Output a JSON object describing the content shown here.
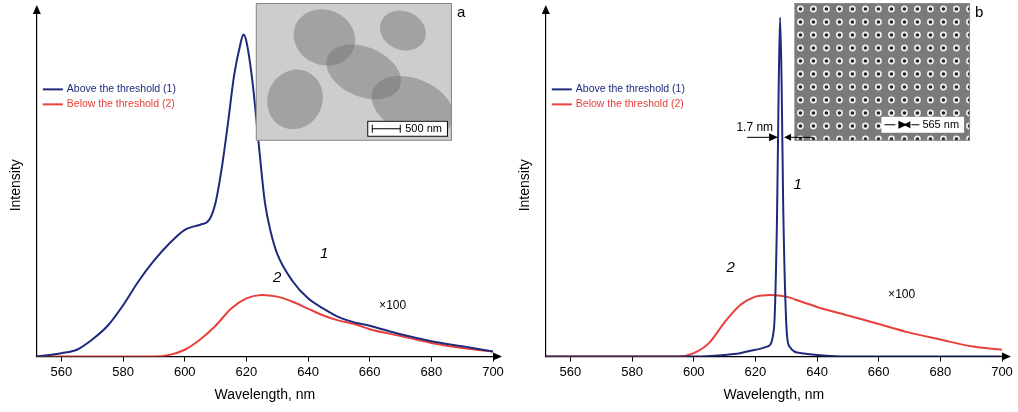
{
  "chart_data": [
    {
      "type": "line",
      "panel_label": "a",
      "x_label": "Wavelength, nm",
      "y_label": "Intensity",
      "xlim": [
        552,
        700
      ],
      "xticks": [
        560,
        580,
        600,
        620,
        640,
        660,
        680,
        700
      ],
      "ylim": [
        0,
        100
      ],
      "tick_labels": "x",
      "grid": false,
      "legend": "upper left",
      "series": [
        {
          "name": "Above the threshold (1)",
          "color": "#1f2a7c",
          "x": [
            552,
            560,
            565,
            570,
            575,
            580,
            585,
            590,
            595,
            600,
            603,
            605,
            608,
            610,
            612,
            614,
            616,
            618,
            619,
            620,
            622,
            624,
            626,
            628,
            630,
            635,
            640,
            645,
            650,
            655,
            660,
            670,
            680,
            690,
            700
          ],
          "values": [
            0,
            1,
            2,
            5,
            9,
            15,
            22,
            28,
            33,
            37,
            38,
            38.5,
            40,
            45,
            55,
            68,
            82,
            91,
            94,
            92,
            80,
            62,
            45,
            36,
            30,
            22,
            17,
            14,
            11.5,
            10,
            9,
            6.5,
            4.5,
            3,
            1.5
          ]
        },
        {
          "name": "Below the threshold (2)",
          "color": "#e8413c",
          "x": [
            552,
            590,
            595,
            600,
            605,
            610,
            615,
            620,
            625,
            630,
            635,
            640,
            645,
            650,
            655,
            660,
            670,
            680,
            690,
            700
          ],
          "values": [
            0,
            0,
            0.5,
            2,
            5,
            9,
            14,
            17,
            18,
            17.5,
            16,
            14,
            12,
            10.5,
            9.5,
            8,
            6,
            4,
            2.5,
            1.5
          ]
        }
      ],
      "annotations": [
        "1",
        "2",
        "×100"
      ],
      "inset": {
        "scale_bar": "500 nm"
      }
    },
    {
      "type": "line",
      "panel_label": "b",
      "x_label": "Wavelength, nm",
      "y_label": "Intensity",
      "xlim": [
        552,
        700
      ],
      "xticks": [
        560,
        580,
        600,
        620,
        640,
        660,
        680,
        700
      ],
      "ylim": [
        0,
        100
      ],
      "tick_labels": "x",
      "grid": false,
      "legend": "upper left",
      "series": [
        {
          "name": "Above the threshold (1)",
          "color": "#1f2a7c",
          "x": [
            552,
            600,
            610,
            615,
            620,
            624,
            626,
            627,
            627.5,
            628,
            628.5,
            629,
            630,
            631,
            635,
            640,
            650,
            700
          ],
          "values": [
            0,
            0,
            0.5,
            1,
            2,
            3,
            8,
            40,
            75,
            99,
            80,
            45,
            10,
            3,
            1,
            0.5,
            0,
            0
          ]
        },
        {
          "name": "Below the threshold (2)",
          "color": "#e8413c",
          "x": [
            552,
            595,
            600,
            605,
            610,
            615,
            620,
            625,
            630,
            635,
            640,
            650,
            660,
            670,
            680,
            690,
            700
          ],
          "values": [
            0,
            0,
            1,
            4,
            10,
            15,
            17.5,
            18,
            17.5,
            16,
            14.5,
            12,
            9.5,
            7,
            5,
            3,
            2
          ]
        }
      ],
      "annotations": [
        "1",
        "2",
        "×100"
      ],
      "linewidth_label": "1.7 nm",
      "inset": {
        "scale_bar": "565 nm"
      }
    }
  ]
}
